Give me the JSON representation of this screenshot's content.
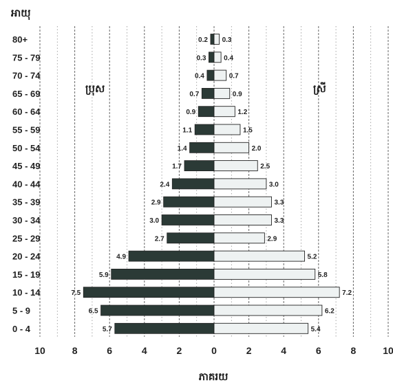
{
  "chart_data": {
    "type": "bar",
    "orientation": "horizontal",
    "style": "population-pyramid",
    "ylabel": "អាយុ",
    "xlabel": "ភាគរយ",
    "xlim": [
      -10,
      10
    ],
    "x_tick_labels": [
      "10",
      "8",
      "6",
      "4",
      "2",
      "0",
      "2",
      "4",
      "6",
      "8",
      "10"
    ],
    "categories": [
      "80+",
      "75 - 79",
      "70 - 74",
      "65 - 69",
      "60 - 64",
      "55 - 59",
      "50 - 54",
      "45 - 49",
      "40 - 44",
      "35 - 39",
      "30 - 34",
      "25 - 29",
      "20 - 24",
      "15 - 19",
      "10 - 14",
      "5 - 9",
      "0 - 4"
    ],
    "series": [
      {
        "name": "ប្រុស",
        "side": "left",
        "color": "#2b3a36",
        "values": [
          0.2,
          0.3,
          0.4,
          0.7,
          0.9,
          1.1,
          1.4,
          1.7,
          2.4,
          2.9,
          3.0,
          2.7,
          4.9,
          5.9,
          7.5,
          6.5,
          5.7
        ],
        "value_labels": [
          "0.2",
          "0.3",
          "0.4",
          "0.7",
          "0.9",
          "1.1",
          "1.4",
          "1.7",
          "2.4",
          "2.9",
          "3.0",
          "2.7",
          "4.9",
          "5.9",
          "7.5",
          "6.5",
          "5.7"
        ]
      },
      {
        "name": "ស្រី",
        "side": "right",
        "color": "#eef2f2",
        "values": [
          0.3,
          0.4,
          0.7,
          0.9,
          1.2,
          1.5,
          2.0,
          2.5,
          3.0,
          3.3,
          3.3,
          2.9,
          5.2,
          5.8,
          7.2,
          6.2,
          5.4
        ],
        "value_labels": [
          "0.3",
          "0.4",
          "0.7",
          "0.9",
          "1.2",
          "1.5",
          "2.0",
          "2.5",
          "3.0",
          "3.3",
          "3.3",
          "2.9",
          "5.2",
          "5.8",
          "7.2",
          "6.2",
          "5.4"
        ]
      }
    ],
    "grid": "vertical-dashed",
    "colors": {
      "male_bar": "#2b3a36",
      "female_bar": "#eef2f2",
      "bar_outline": "#222222",
      "text": "#222222",
      "grid": "#333333"
    }
  }
}
